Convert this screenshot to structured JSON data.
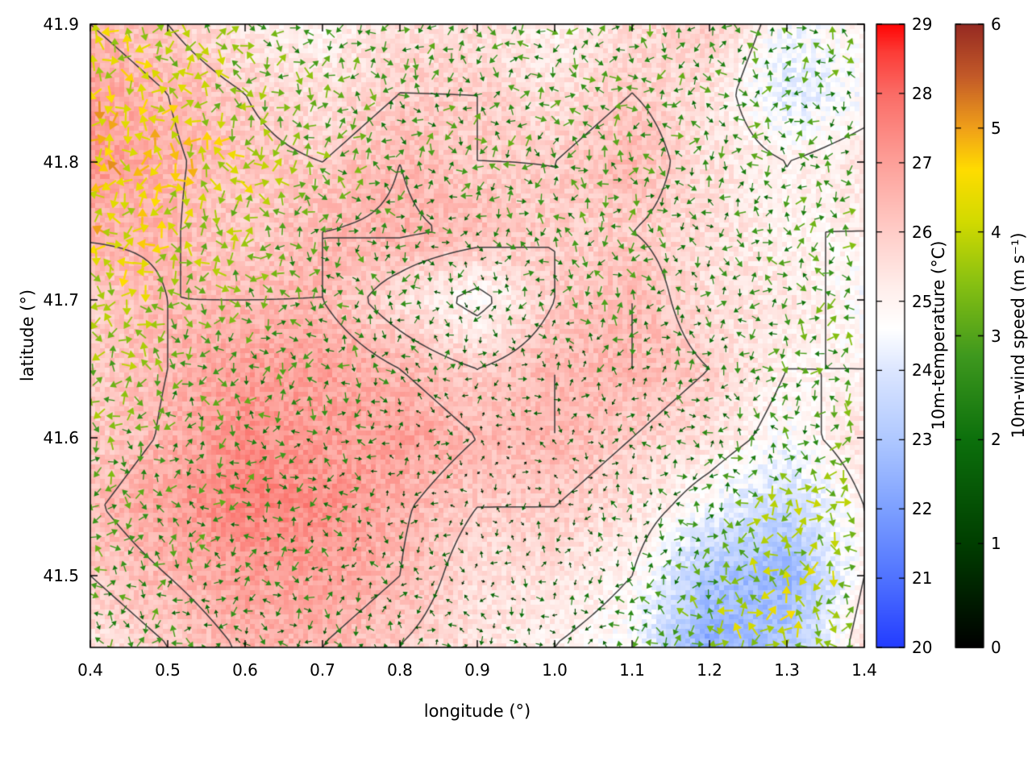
{
  "figure": {
    "background": "#ffffff"
  },
  "chart_data": {
    "type": "heatmap",
    "subtype": "temperature-field-with-wind-vector-overlay-and-contours",
    "title": "",
    "xlabel": "longitude (°)",
    "ylabel": "latitude (°)",
    "x_range": [
      0.4,
      1.4
    ],
    "y_range": [
      41.448,
      41.9
    ],
    "x_ticks": [
      0.4,
      0.5,
      0.6,
      0.7,
      0.8,
      0.9,
      1.0,
      1.1,
      1.2,
      1.3,
      1.4
    ],
    "x_tick_labels": [
      "0.4",
      "0.5",
      "0.6",
      "0.7",
      "0.8",
      "0.9",
      "1.0",
      "1.1",
      "1.2",
      "1.3",
      "1.4"
    ],
    "y_ticks": [
      41.5,
      41.6,
      41.7,
      41.8,
      41.9
    ],
    "y_tick_labels": [
      "41.5",
      "41.6",
      "41.7",
      "41.8",
      "41.9"
    ],
    "grid_lon": [
      0.4,
      0.5,
      0.6,
      0.7,
      0.8,
      0.9,
      1.0,
      1.1,
      1.2,
      1.3,
      1.4
    ],
    "grid_lat": [
      41.9,
      41.85,
      41.8,
      41.75,
      41.7,
      41.65,
      41.6,
      41.55,
      41.5,
      41.45
    ],
    "temperature": {
      "label": "10m-temperature (°C)",
      "range": [
        20,
        29
      ],
      "ticks": [
        20,
        21,
        22,
        23,
        24,
        25,
        26,
        27,
        28,
        29
      ],
      "tick_labels": [
        "20",
        "21",
        "22",
        "23",
        "24",
        "25",
        "26",
        "27",
        "28",
        "29"
      ],
      "values": [
        [
          26.5,
          26.0,
          25.3,
          25.0,
          25.6,
          25.5,
          25.0,
          25.6,
          26.0,
          24.5,
          25.0
        ],
        [
          27.0,
          26.5,
          26.0,
          25.5,
          26.0,
          26.0,
          25.5,
          26.0,
          25.5,
          24.0,
          24.6
        ],
        [
          27.2,
          26.6,
          26.2,
          26.0,
          26.5,
          26.0,
          26.0,
          26.5,
          25.5,
          25.0,
          25.4
        ],
        [
          26.6,
          26.6,
          26.0,
          26.5,
          26.6,
          26.4,
          26.0,
          26.0,
          25.6,
          25.0,
          25.0
        ],
        [
          26.0,
          26.5,
          26.5,
          26.5,
          25.6,
          24.7,
          26.0,
          26.5,
          25.5,
          25.4,
          24.6
        ],
        [
          26.0,
          26.5,
          27.0,
          27.0,
          26.5,
          26.0,
          26.5,
          26.5,
          26.0,
          25.0,
          25.0
        ],
        [
          26.0,
          26.6,
          27.4,
          27.0,
          27.0,
          26.5,
          26.5,
          26.0,
          25.5,
          24.6,
          25.5
        ],
        [
          26.4,
          27.0,
          27.6,
          27.4,
          26.6,
          26.0,
          26.0,
          25.5,
          24.5,
          23.5,
          25.0
        ],
        [
          26.0,
          26.5,
          27.0,
          27.0,
          26.5,
          25.6,
          25.5,
          25.0,
          23.0,
          22.4,
          25.0
        ],
        [
          25.5,
          26.0,
          26.6,
          26.5,
          26.0,
          25.5,
          25.0,
          24.6,
          22.2,
          23.0,
          25.5
        ]
      ],
      "colormap": [
        [
          20.0,
          [
            35,
            60,
            255
          ]
        ],
        [
          21.0,
          [
            80,
            115,
            255
          ]
        ],
        [
          22.0,
          [
            125,
            160,
            255
          ]
        ],
        [
          23.0,
          [
            175,
            200,
            255
          ]
        ],
        [
          24.0,
          [
            220,
            230,
            255
          ]
        ],
        [
          24.6,
          [
            255,
            255,
            255
          ]
        ],
        [
          25.2,
          [
            255,
            238,
            235
          ]
        ],
        [
          26.0,
          [
            255,
            205,
            200
          ]
        ],
        [
          27.0,
          [
            253,
            160,
            153
          ]
        ],
        [
          28.0,
          [
            250,
            108,
            102
          ]
        ],
        [
          28.6,
          [
            252,
            60,
            55
          ]
        ],
        [
          29.0,
          [
            255,
            5,
            5
          ]
        ]
      ]
    },
    "wind": {
      "label": "10m-wind speed (m s⁻¹)",
      "range": [
        0,
        6
      ],
      "ticks": [
        0,
        1,
        2,
        3,
        4,
        5,
        6
      ],
      "tick_labels": [
        "0",
        "1",
        "2",
        "3",
        "4",
        "5",
        "6"
      ],
      "speed_values": [
        [
          4.0,
          3.5,
          3.0,
          2.5,
          2.5,
          2.5,
          2.5,
          2.5,
          2.5,
          2.5,
          3.0
        ],
        [
          4.5,
          4.0,
          3.5,
          3.0,
          2.5,
          2.5,
          2.5,
          2.5,
          2.5,
          2.5,
          2.5
        ],
        [
          4.5,
          4.5,
          4.0,
          3.0,
          2.5,
          2.5,
          2.5,
          2.5,
          2.5,
          2.5,
          2.5
        ],
        [
          4.5,
          4.0,
          3.5,
          2.5,
          2.5,
          2.0,
          2.5,
          2.5,
          2.0,
          2.5,
          3.0
        ],
        [
          4.0,
          3.5,
          3.0,
          2.5,
          2.0,
          1.5,
          2.0,
          2.5,
          2.0,
          2.5,
          3.0
        ],
        [
          3.5,
          3.0,
          2.5,
          2.5,
          2.0,
          1.5,
          1.5,
          2.0,
          2.0,
          2.5,
          3.0
        ],
        [
          3.0,
          2.5,
          2.5,
          2.0,
          1.5,
          1.0,
          1.0,
          1.5,
          2.0,
          2.5,
          3.0
        ],
        [
          3.0,
          2.5,
          2.5,
          2.0,
          1.5,
          1.0,
          1.0,
          1.5,
          2.5,
          3.5,
          3.5
        ],
        [
          2.5,
          2.5,
          2.0,
          2.0,
          1.5,
          1.0,
          1.5,
          2.0,
          3.0,
          4.0,
          3.5
        ],
        [
          2.5,
          2.5,
          2.0,
          2.0,
          1.5,
          1.5,
          1.5,
          2.5,
          3.5,
          4.0,
          3.0
        ]
      ],
      "colormap": [
        [
          0.0,
          [
            0,
            0,
            0
          ]
        ],
        [
          1.0,
          [
            0,
            62,
            0
          ]
        ],
        [
          2.0,
          [
            12,
            112,
            12
          ]
        ],
        [
          2.8,
          [
            62,
            152,
            30
          ]
        ],
        [
          3.5,
          [
            135,
            192,
            18
          ]
        ],
        [
          4.1,
          [
            210,
            218,
            0
          ]
        ],
        [
          4.6,
          [
            255,
            220,
            0
          ]
        ],
        [
          5.0,
          [
            240,
            160,
            25
          ]
        ],
        [
          5.5,
          [
            195,
            90,
            40
          ]
        ],
        [
          6.0,
          [
            150,
            42,
            34
          ]
        ]
      ]
    },
    "contour_levels": [
      25,
      26,
      26.5
    ],
    "colors": {
      "contour": "#3c3c3c",
      "axis": "#000000",
      "text": "#000000",
      "background": "#ffffff"
    },
    "legend_position": "right-colorbars",
    "grid_lines": false
  }
}
